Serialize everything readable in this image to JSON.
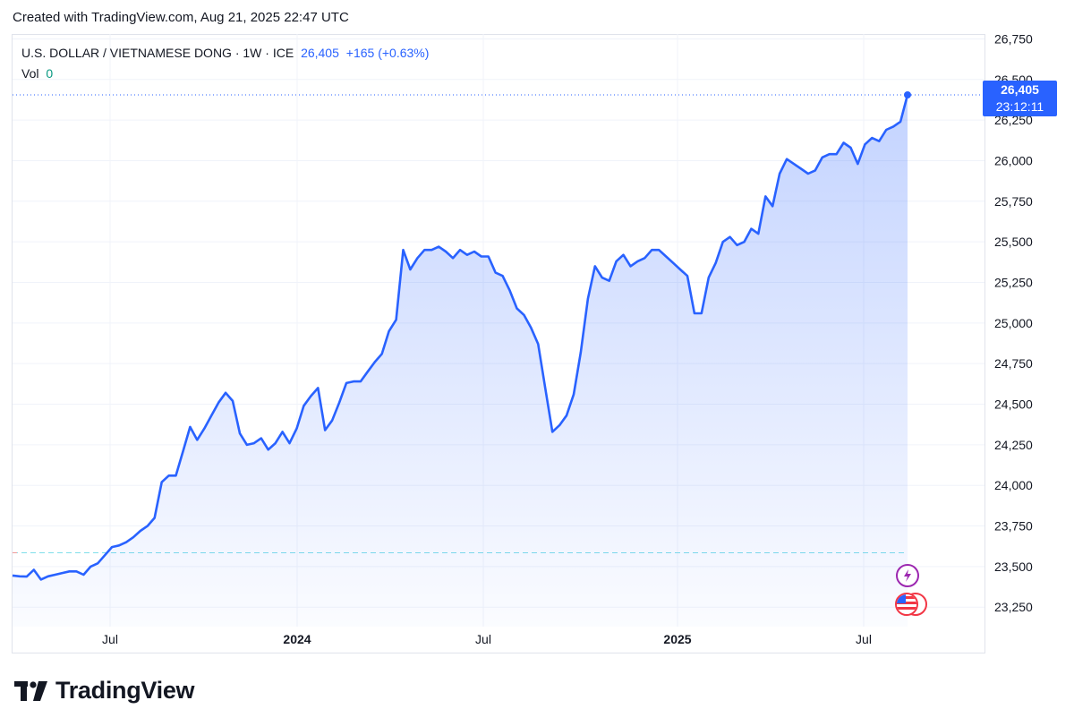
{
  "header": {
    "created_text": "Created with TradingView.com, Aug 21, 2025 22:47 UTC"
  },
  "legend": {
    "symbol": "U.S. DOLLAR / VIETNAMESE DONG · 1W · ICE",
    "last": "26,405",
    "change": "+165 (+0.63%)",
    "vol_label": "Vol",
    "vol_value": "0"
  },
  "price_tag": {
    "price": "26,405",
    "countdown": "23:12:11"
  },
  "logo": {
    "text": "TradingView"
  },
  "colors": {
    "line": "#2962ff",
    "fill": "#2962ff",
    "grid": "#f0f3fa",
    "reference": "#ef9a9a",
    "reference2": "#80deea"
  },
  "chart_data": {
    "type": "area",
    "ylim": [
      23130,
      26780
    ],
    "y_ticks": [
      23250,
      23500,
      23750,
      24000,
      24250,
      24500,
      24750,
      25000,
      25250,
      25500,
      25750,
      26000,
      26250,
      26500,
      26750
    ],
    "x_ticks": [
      "Jul",
      "2024",
      "Jul",
      "2025",
      "Jul"
    ],
    "reference_level": 23585,
    "last_value": 26405,
    "values": [
      23445,
      23440,
      23438,
      23480,
      23420,
      23440,
      23450,
      23460,
      23470,
      23470,
      23450,
      23500,
      23520,
      23570,
      23620,
      23630,
      23650,
      23680,
      23720,
      23750,
      23800,
      24020,
      24060,
      24060,
      24210,
      24360,
      24280,
      24350,
      24430,
      24510,
      24570,
      24520,
      24320,
      24250,
      24260,
      24290,
      24220,
      24260,
      24330,
      24260,
      24350,
      24490,
      24550,
      24600,
      24340,
      24400,
      24510,
      24630,
      24640,
      24640,
      24700,
      24760,
      24810,
      24950,
      25020,
      25450,
      25330,
      25400,
      25450,
      25450,
      25470,
      25440,
      25400,
      25450,
      25420,
      25440,
      25410,
      25410,
      25310,
      25290,
      25200,
      25090,
      25050,
      24970,
      24870,
      24600,
      24330,
      24370,
      24430,
      24560,
      24820,
      25150,
      25350,
      25280,
      25260,
      25380,
      25420,
      25350,
      25380,
      25400,
      25450,
      25450,
      25410,
      25370,
      25330,
      25290,
      25060,
      25060,
      25280,
      25370,
      25500,
      25530,
      25480,
      25500,
      25580,
      25550,
      25780,
      25720,
      25920,
      26010,
      25980,
      25950,
      25920,
      25940,
      26020,
      26040,
      26040,
      26110,
      26080,
      25980,
      26100,
      26140,
      26120,
      26190,
      26210,
      26240,
      26405
    ]
  }
}
